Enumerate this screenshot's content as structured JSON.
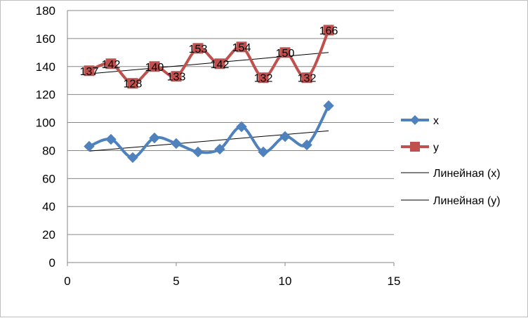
{
  "chart_data": {
    "type": "line",
    "title": "",
    "xlabel": "",
    "ylabel": "",
    "xlim": [
      0,
      15
    ],
    "ylim": [
      0,
      180
    ],
    "xticks": [
      0,
      5,
      10,
      15
    ],
    "yticks": [
      0,
      20,
      40,
      60,
      80,
      100,
      120,
      140,
      160,
      180
    ],
    "grid": "horizontal",
    "legend_position": "right",
    "x": [
      1,
      2,
      3,
      4,
      5,
      6,
      7,
      8,
      9,
      10,
      11,
      12
    ],
    "series": [
      {
        "name": "x",
        "values": [
          83,
          88,
          75,
          89,
          85,
          79,
          81,
          97,
          79,
          90,
          84,
          112
        ],
        "color": "#4F81BD",
        "marker": "diamond",
        "smooth": true,
        "data_labels": false
      },
      {
        "name": "y",
        "values": [
          137,
          142,
          128,
          140,
          133,
          153,
          142,
          154,
          132,
          150,
          132,
          166
        ],
        "color": "#C0504D",
        "marker": "square",
        "smooth": true,
        "data_labels": true
      }
    ],
    "trendlines": [
      {
        "name": "Линейная (x)",
        "of": "x",
        "type": "linear",
        "color": "#000000"
      },
      {
        "name": "Линейная (y)",
        "of": "y",
        "type": "linear",
        "color": "#000000"
      }
    ]
  }
}
